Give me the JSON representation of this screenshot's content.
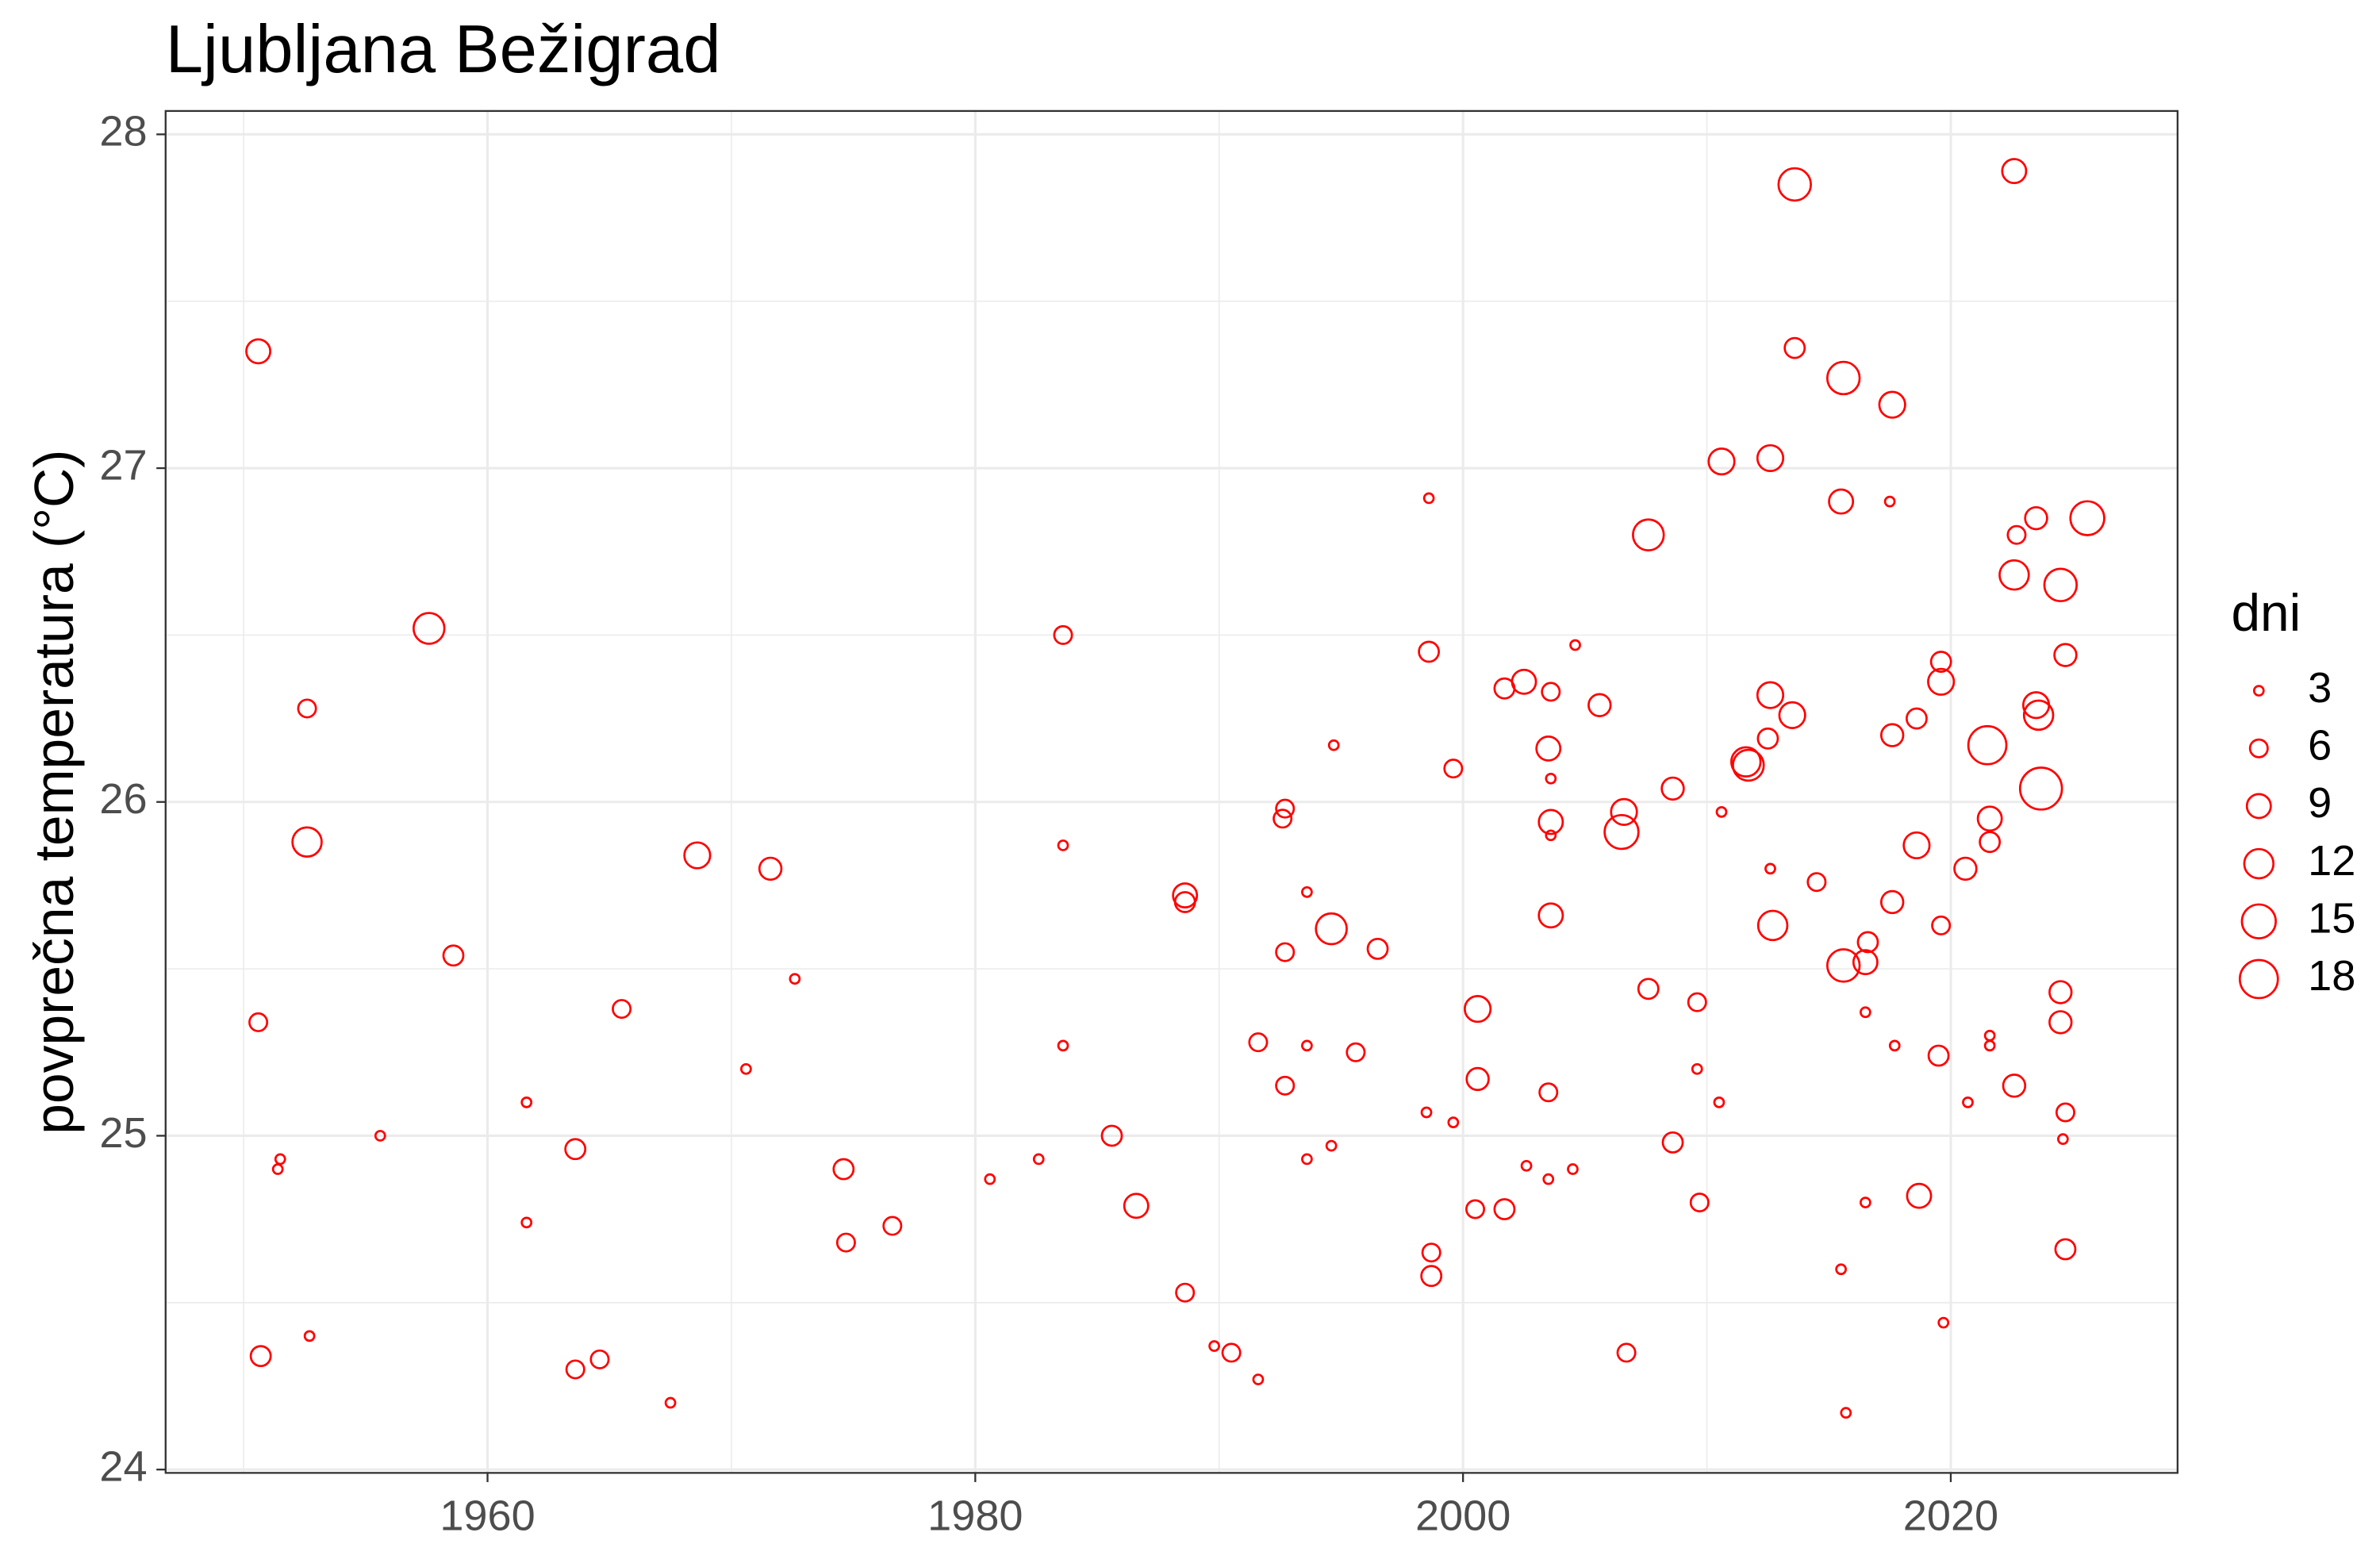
{
  "chart_data": {
    "type": "scatter",
    "title": "Ljubljana Bežigrad",
    "y_label": "povprečna temperatura (°C)",
    "color": "#ff0000",
    "xlim": [
      1946.8,
      2029.3
    ],
    "xticks": [
      1960,
      1980,
      2000,
      2020
    ],
    "x_minor_ticks": [
      1950,
      1970,
      1990,
      2010
    ],
    "ylim": [
      23.99,
      28.07
    ],
    "yticks": [
      24,
      25,
      26,
      27,
      28
    ],
    "y_minor_ticks": [
      24.5,
      25.5,
      26.5,
      27.5
    ],
    "grid": true,
    "size_legend": {
      "title": "dni",
      "values": [
        3,
        6,
        9,
        12,
        15,
        18
      ]
    },
    "x": [
      1950.6,
      1950.6,
      1950.7,
      1951.5,
      1951.4,
      1952.6,
      1952.6,
      1952.7,
      1955.6,
      1957.6,
      1958.6,
      1961.6,
      1961.6,
      1963.6,
      1963.6,
      1964.6,
      1965.5,
      1967.5,
      1968.6,
      1970.6,
      1971.6,
      1972.6,
      1974.6,
      1974.7,
      1976.6,
      1980.6,
      1982.6,
      1983.6,
      1983.6,
      1983.6,
      1985.6,
      1986.6,
      1988.6,
      1988.6,
      1988.6,
      1989.8,
      1990.5,
      1991.6,
      1991.6,
      1992.7,
      1992.6,
      1992.7,
      1992.7,
      1993.6,
      1993.6,
      1993.6,
      1994.6,
      1994.7,
      1994.6,
      1995.6,
      1996.5,
      1998.6,
      1998.6,
      1998.5,
      1998.7,
      1998.7,
      1999.6,
      1999.6,
      2000.6,
      2000.6,
      2000.5,
      2001.7,
      2001.7,
      2002.5,
      2002.6,
      2003.5,
      2003.5,
      2003.6,
      2003.6,
      2003.6,
      2003.6,
      2003.6,
      2003.5,
      2004.5,
      2004.6,
      2005.6,
      2006.6,
      2006.5,
      2006.7,
      2007.6,
      2007.6,
      2008.6,
      2008.6,
      2009.6,
      2009.6,
      2009.7,
      2010.6,
      2010.6,
      2010.5,
      2011.6,
      2011.7,
      2012.6,
      2012.5,
      2012.6,
      2012.7,
      2012.6,
      2013.6,
      2013.6,
      2013.5,
      2014.5,
      2015.7,
      2015.6,
      2015.5,
      2015.6,
      2015.5,
      2016.6,
      2016.5,
      2016.5,
      2016.5,
      2017.6,
      2017.5,
      2017.6,
      2017.6,
      2017.7,
      2018.6,
      2018.6,
      2018.7,
      2019.6,
      2019.6,
      2019.6,
      2019.5,
      2019.7,
      2020.6,
      2020.7,
      2021.5,
      2021.6,
      2021.6,
      2021.6,
      2021.6,
      2022.6,
      2022.7,
      2022.6,
      2022.6,
      2023.5,
      2023.5,
      2023.6,
      2023.7,
      2024.5,
      2024.7,
      2024.5,
      2024.5,
      2024.7,
      2024.6,
      2024.7,
      2025.6
    ],
    "y": [
      27.35,
      25.34,
      24.34,
      24.93,
      24.9,
      26.28,
      25.88,
      24.4,
      25.0,
      26.52,
      25.54,
      25.1,
      24.74,
      24.96,
      24.3,
      24.33,
      25.38,
      24.2,
      25.84,
      25.2,
      25.8,
      25.47,
      24.9,
      24.68,
      24.73,
      24.87,
      24.93,
      26.5,
      25.87,
      25.27,
      25.0,
      24.79,
      25.72,
      25.7,
      24.53,
      24.37,
      24.35,
      24.27,
      25.28,
      25.98,
      25.95,
      25.55,
      25.15,
      25.73,
      25.27,
      24.93,
      24.97,
      26.17,
      25.62,
      25.25,
      25.56,
      26.91,
      26.45,
      25.07,
      24.65,
      24.58,
      26.1,
      25.04,
      25.38,
      25.17,
      24.78,
      24.78,
      26.34,
      26.36,
      24.91,
      24.87,
      26.16,
      26.33,
      26.07,
      25.94,
      25.9,
      25.66,
      25.13,
      24.9,
      26.47,
      26.29,
      25.97,
      25.91,
      24.35,
      26.8,
      25.44,
      26.04,
      24.98,
      25.4,
      25.2,
      24.8,
      27.02,
      25.97,
      25.1,
      26.12,
      26.11,
      27.03,
      26.19,
      26.32,
      25.63,
      25.8,
      27.85,
      27.36,
      26.26,
      25.76,
      24.17,
      27.27,
      26.9,
      25.51,
      24.6,
      25.58,
      25.52,
      25.37,
      24.8,
      27.19,
      26.9,
      26.2,
      25.7,
      25.27,
      26.25,
      25.87,
      24.82,
      26.42,
      26.36,
      25.63,
      25.24,
      24.44,
      25.8,
      25.1,
      26.17,
      25.95,
      25.88,
      25.3,
      25.27,
      27.89,
      26.8,
      26.68,
      25.15,
      26.85,
      26.29,
      26.26,
      26.04,
      26.65,
      26.44,
      25.43,
      25.34,
      25.07,
      24.99,
      24.66,
      26.85
    ],
    "size": [
      9,
      6,
      7,
      3,
      3,
      6,
      12,
      3,
      3,
      13,
      7,
      3,
      3,
      7,
      6,
      6,
      6,
      3,
      10,
      3,
      8,
      3,
      7,
      6,
      6,
      3,
      3,
      6,
      3,
      3,
      7,
      9,
      9,
      7,
      6,
      3,
      6,
      3,
      6,
      6,
      6,
      6,
      6,
      3,
      3,
      3,
      3,
      3,
      13,
      6,
      7,
      3,
      7,
      3,
      6,
      7,
      6,
      3,
      10,
      8,
      6,
      7,
      7,
      9,
      3,
      3,
      9,
      6,
      3,
      9,
      3,
      9,
      6,
      3,
      3,
      8,
      10,
      15,
      6,
      13,
      7,
      8,
      7,
      6,
      3,
      6,
      10,
      3,
      3,
      12,
      13,
      10,
      7,
      10,
      12,
      3,
      14,
      7,
      10,
      6,
      3,
      14,
      9,
      14,
      3,
      7,
      9,
      3,
      3,
      10,
      3,
      8,
      8,
      3,
      7,
      10,
      9,
      7,
      10,
      6,
      7,
      3,
      8,
      3,
      18,
      9,
      7,
      3,
      3,
      9,
      6,
      12,
      8,
      8,
      10,
      12,
      21,
      14,
      8,
      8,
      8,
      6,
      3,
      7,
      15
    ]
  }
}
